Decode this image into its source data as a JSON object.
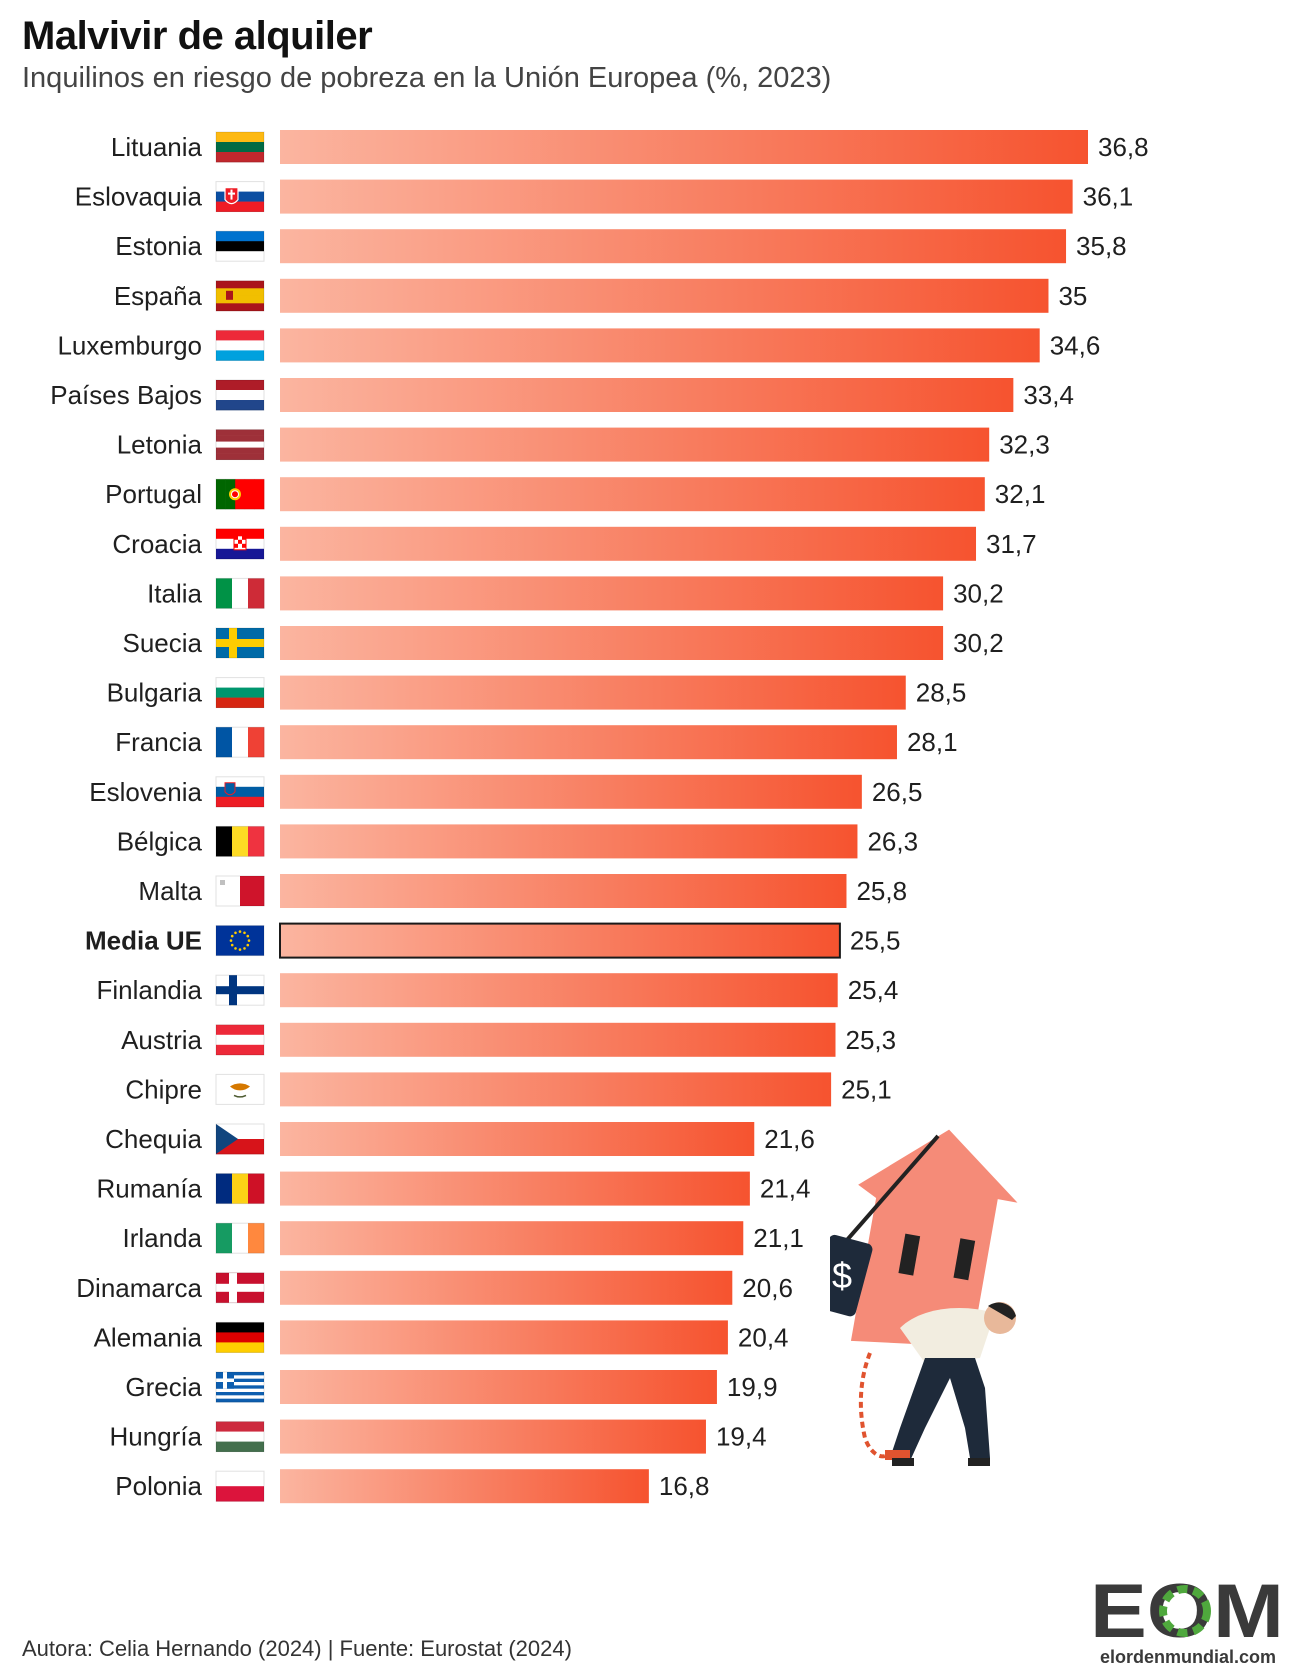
{
  "title": "Malvivir de alquiler",
  "subtitle": "Inquilinos en riesgo de pobreza en la Unión Europea (%, 2023)",
  "footer": "Autora: Celia Hernando (2024) | Fuente: Eurostat (2024)",
  "logo": {
    "mark": "EOM",
    "url_text": "elordenmundial.com"
  },
  "illustration": {
    "tag_text": "$"
  },
  "colors": {
    "bar_light": "#fbb5a0",
    "bar_dark": "#f6532f",
    "highlight_border": "#1a1a1a",
    "text": "#1f1f1f",
    "logo": "#3a3a3a",
    "logo_accent": "#4fa83d"
  },
  "chart_data": {
    "type": "bar",
    "orientation": "horizontal",
    "categories": [
      "Lituania",
      "Eslovaquia",
      "Estonia",
      "España",
      "Luxemburgo",
      "Países Bajos",
      "Letonia",
      "Portugal",
      "Croacia",
      "Italia",
      "Suecia",
      "Bulgaria",
      "Francia",
      "Eslovenia",
      "Bélgica",
      "Malta",
      "Media UE",
      "Finlandia",
      "Austria",
      "Chipre",
      "Chequia",
      "Rumanía",
      "Irlanda",
      "Dinamarca",
      "Alemania",
      "Grecia",
      "Hungría",
      "Polonia"
    ],
    "values": [
      36.8,
      36.1,
      35.8,
      35,
      34.6,
      33.4,
      32.3,
      32.1,
      31.7,
      30.2,
      30.2,
      28.5,
      28.1,
      26.5,
      26.3,
      25.8,
      25.5,
      25.4,
      25.3,
      25.1,
      21.6,
      21.4,
      21.1,
      20.6,
      20.4,
      19.9,
      19.4,
      16.8
    ],
    "value_labels": [
      "36,8",
      "36,1",
      "35,8",
      "35",
      "34,6",
      "33,4",
      "32,3",
      "32,1",
      "31,7",
      "30,2",
      "30,2",
      "28,5",
      "28,1",
      "26,5",
      "26,3",
      "25,8",
      "25,5",
      "25,4",
      "25,3",
      "25,1",
      "21,6",
      "21,4",
      "21,1",
      "20,6",
      "20,4",
      "19,9",
      "19,4",
      "16,8"
    ],
    "highlight": "Media UE",
    "flags": [
      "lithuania-flag",
      "slovakia-flag",
      "estonia-flag",
      "spain-flag",
      "luxembourg-flag",
      "netherlands-flag",
      "latvia-flag",
      "portugal-flag",
      "croatia-flag",
      "italy-flag",
      "sweden-flag",
      "bulgaria-flag",
      "france-flag",
      "slovenia-flag",
      "belgium-flag",
      "malta-flag",
      "eu-flag",
      "finland-flag",
      "austria-flag",
      "cyprus-flag",
      "czechia-flag",
      "romania-flag",
      "ireland-flag",
      "denmark-flag",
      "germany-flag",
      "greece-flag",
      "hungary-flag",
      "poland-flag"
    ],
    "xlim": [
      0,
      36.8
    ],
    "grid": false,
    "legend": "none"
  }
}
